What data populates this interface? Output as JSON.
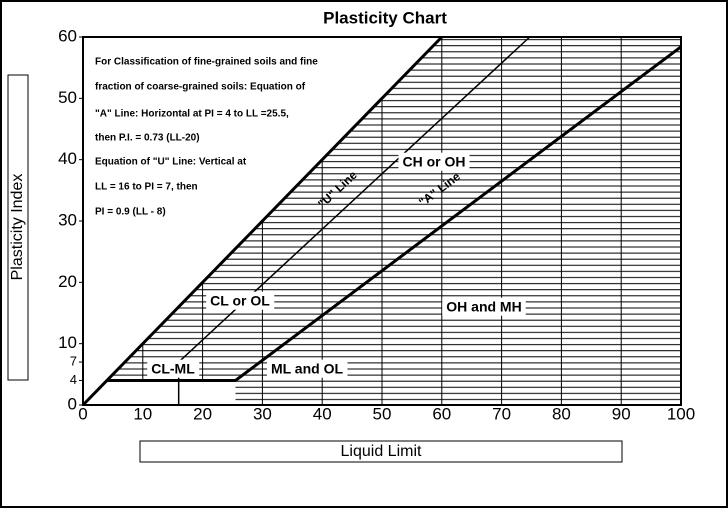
{
  "chart_data": {
    "type": "line",
    "title": "Plasticity Chart",
    "x_label": "Liquid Limit",
    "y_label": "Plasticity Index",
    "xlim": [
      0,
      100
    ],
    "ylim": [
      0,
      60
    ],
    "xticks": [
      0,
      10,
      20,
      30,
      40,
      50,
      60,
      70,
      80,
      90,
      100
    ],
    "yticks": [
      0,
      4,
      7,
      10,
      20,
      30,
      40,
      50,
      60
    ],
    "series": [
      {
        "color": "#000000",
        "x": [
          0,
          60
        ],
        "values": [
          0,
          60
        ]
      },
      {
        "color": "#000000",
        "x": [
          4,
          25.5,
          100
        ],
        "values": [
          4,
          4,
          58.4
        ]
      },
      {
        "color": "#000000",
        "x": [
          16,
          16,
          74.7
        ],
        "values": [
          0,
          7,
          60
        ]
      }
    ],
    "note": [
      "For Classification of fine-grained soils and fine",
      "fraction of coarse-grained soils: Equation  of",
      "\"A\" Line: Horizontal at PI = 4 to LL =25.5,",
      "then  P.I. = 0.73 (LL-20)",
      "Equation of \"U\" Line:  Vertical at",
      "LL = 16 to PI = 7, then",
      "PI = 0.9 (LL - 8)"
    ],
    "line_labels": [
      "\"U\" Line",
      "\"A\" Line"
    ],
    "regions": [
      "CH or OH",
      "CL or OL",
      "CL-ML",
      "ML and OL",
      "OH and MH"
    ]
  }
}
